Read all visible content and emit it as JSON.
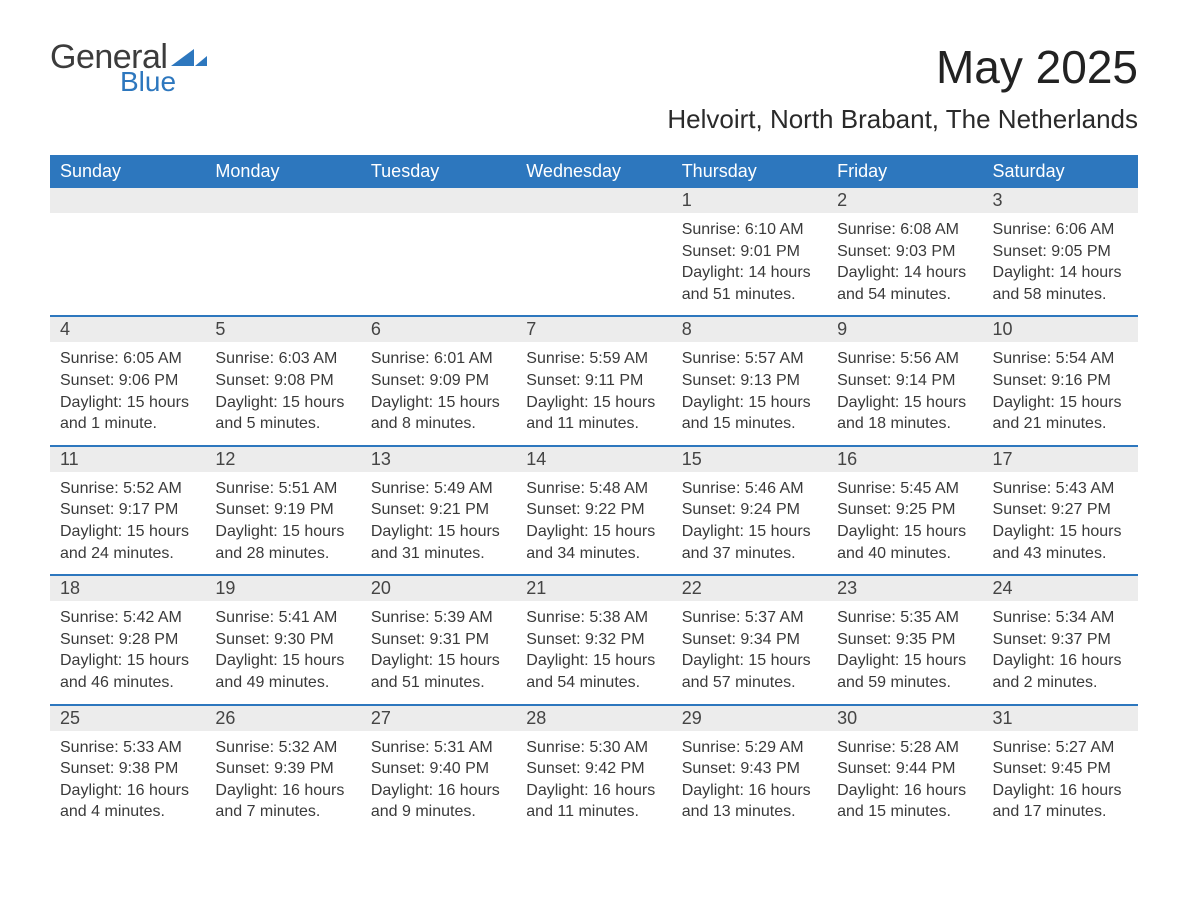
{
  "logo": {
    "line1": "General",
    "line2": "Blue",
    "brand_color": "#2d77be",
    "text_color": "#3c3c3c"
  },
  "month_title": "May 2025",
  "location": "Helvoirt, North Brabant, The Netherlands",
  "colors": {
    "header_bg": "#2d77be",
    "header_text": "#ffffff",
    "daynum_bg": "#ececec",
    "day_border_top": "#2d77be",
    "body_text": "#3a3a3a",
    "page_bg": "#ffffff"
  },
  "day_names": [
    "Sunday",
    "Monday",
    "Tuesday",
    "Wednesday",
    "Thursday",
    "Friday",
    "Saturday"
  ],
  "weeks": [
    [
      null,
      null,
      null,
      null,
      {
        "n": "1",
        "sunrise": "Sunrise: 6:10 AM",
        "sunset": "Sunset: 9:01 PM",
        "daylight": "Daylight: 14 hours and 51 minutes."
      },
      {
        "n": "2",
        "sunrise": "Sunrise: 6:08 AM",
        "sunset": "Sunset: 9:03 PM",
        "daylight": "Daylight: 14 hours and 54 minutes."
      },
      {
        "n": "3",
        "sunrise": "Sunrise: 6:06 AM",
        "sunset": "Sunset: 9:05 PM",
        "daylight": "Daylight: 14 hours and 58 minutes."
      }
    ],
    [
      {
        "n": "4",
        "sunrise": "Sunrise: 6:05 AM",
        "sunset": "Sunset: 9:06 PM",
        "daylight": "Daylight: 15 hours and 1 minute."
      },
      {
        "n": "5",
        "sunrise": "Sunrise: 6:03 AM",
        "sunset": "Sunset: 9:08 PM",
        "daylight": "Daylight: 15 hours and 5 minutes."
      },
      {
        "n": "6",
        "sunrise": "Sunrise: 6:01 AM",
        "sunset": "Sunset: 9:09 PM",
        "daylight": "Daylight: 15 hours and 8 minutes."
      },
      {
        "n": "7",
        "sunrise": "Sunrise: 5:59 AM",
        "sunset": "Sunset: 9:11 PM",
        "daylight": "Daylight: 15 hours and 11 minutes."
      },
      {
        "n": "8",
        "sunrise": "Sunrise: 5:57 AM",
        "sunset": "Sunset: 9:13 PM",
        "daylight": "Daylight: 15 hours and 15 minutes."
      },
      {
        "n": "9",
        "sunrise": "Sunrise: 5:56 AM",
        "sunset": "Sunset: 9:14 PM",
        "daylight": "Daylight: 15 hours and 18 minutes."
      },
      {
        "n": "10",
        "sunrise": "Sunrise: 5:54 AM",
        "sunset": "Sunset: 9:16 PM",
        "daylight": "Daylight: 15 hours and 21 minutes."
      }
    ],
    [
      {
        "n": "11",
        "sunrise": "Sunrise: 5:52 AM",
        "sunset": "Sunset: 9:17 PM",
        "daylight": "Daylight: 15 hours and 24 minutes."
      },
      {
        "n": "12",
        "sunrise": "Sunrise: 5:51 AM",
        "sunset": "Sunset: 9:19 PM",
        "daylight": "Daylight: 15 hours and 28 minutes."
      },
      {
        "n": "13",
        "sunrise": "Sunrise: 5:49 AM",
        "sunset": "Sunset: 9:21 PM",
        "daylight": "Daylight: 15 hours and 31 minutes."
      },
      {
        "n": "14",
        "sunrise": "Sunrise: 5:48 AM",
        "sunset": "Sunset: 9:22 PM",
        "daylight": "Daylight: 15 hours and 34 minutes."
      },
      {
        "n": "15",
        "sunrise": "Sunrise: 5:46 AM",
        "sunset": "Sunset: 9:24 PM",
        "daylight": "Daylight: 15 hours and 37 minutes."
      },
      {
        "n": "16",
        "sunrise": "Sunrise: 5:45 AM",
        "sunset": "Sunset: 9:25 PM",
        "daylight": "Daylight: 15 hours and 40 minutes."
      },
      {
        "n": "17",
        "sunrise": "Sunrise: 5:43 AM",
        "sunset": "Sunset: 9:27 PM",
        "daylight": "Daylight: 15 hours and 43 minutes."
      }
    ],
    [
      {
        "n": "18",
        "sunrise": "Sunrise: 5:42 AM",
        "sunset": "Sunset: 9:28 PM",
        "daylight": "Daylight: 15 hours and 46 minutes."
      },
      {
        "n": "19",
        "sunrise": "Sunrise: 5:41 AM",
        "sunset": "Sunset: 9:30 PM",
        "daylight": "Daylight: 15 hours and 49 minutes."
      },
      {
        "n": "20",
        "sunrise": "Sunrise: 5:39 AM",
        "sunset": "Sunset: 9:31 PM",
        "daylight": "Daylight: 15 hours and 51 minutes."
      },
      {
        "n": "21",
        "sunrise": "Sunrise: 5:38 AM",
        "sunset": "Sunset: 9:32 PM",
        "daylight": "Daylight: 15 hours and 54 minutes."
      },
      {
        "n": "22",
        "sunrise": "Sunrise: 5:37 AM",
        "sunset": "Sunset: 9:34 PM",
        "daylight": "Daylight: 15 hours and 57 minutes."
      },
      {
        "n": "23",
        "sunrise": "Sunrise: 5:35 AM",
        "sunset": "Sunset: 9:35 PM",
        "daylight": "Daylight: 15 hours and 59 minutes."
      },
      {
        "n": "24",
        "sunrise": "Sunrise: 5:34 AM",
        "sunset": "Sunset: 9:37 PM",
        "daylight": "Daylight: 16 hours and 2 minutes."
      }
    ],
    [
      {
        "n": "25",
        "sunrise": "Sunrise: 5:33 AM",
        "sunset": "Sunset: 9:38 PM",
        "daylight": "Daylight: 16 hours and 4 minutes."
      },
      {
        "n": "26",
        "sunrise": "Sunrise: 5:32 AM",
        "sunset": "Sunset: 9:39 PM",
        "daylight": "Daylight: 16 hours and 7 minutes."
      },
      {
        "n": "27",
        "sunrise": "Sunrise: 5:31 AM",
        "sunset": "Sunset: 9:40 PM",
        "daylight": "Daylight: 16 hours and 9 minutes."
      },
      {
        "n": "28",
        "sunrise": "Sunrise: 5:30 AM",
        "sunset": "Sunset: 9:42 PM",
        "daylight": "Daylight: 16 hours and 11 minutes."
      },
      {
        "n": "29",
        "sunrise": "Sunrise: 5:29 AM",
        "sunset": "Sunset: 9:43 PM",
        "daylight": "Daylight: 16 hours and 13 minutes."
      },
      {
        "n": "30",
        "sunrise": "Sunrise: 5:28 AM",
        "sunset": "Sunset: 9:44 PM",
        "daylight": "Daylight: 16 hours and 15 minutes."
      },
      {
        "n": "31",
        "sunrise": "Sunrise: 5:27 AM",
        "sunset": "Sunset: 9:45 PM",
        "daylight": "Daylight: 16 hours and 17 minutes."
      }
    ]
  ]
}
